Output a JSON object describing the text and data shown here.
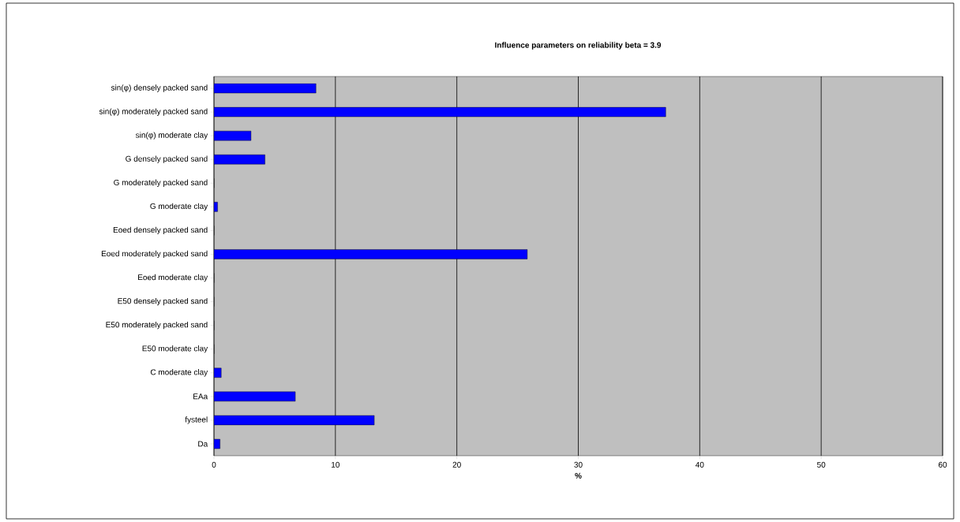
{
  "chart_data": {
    "type": "bar",
    "orientation": "horizontal",
    "title": "Influence parameters on reliability beta = 3.9",
    "xlabel": "%",
    "categories": [
      "sin(φ) densely packed sand",
      "sin(φ) moderately packed sand",
      "sin(φ) moderate clay",
      "G densely packed sand",
      "G moderately packed sand",
      "G moderate clay",
      "Eoed densely packed sand",
      "Eoed moderately packed sand",
      "Eoed moderate clay",
      "E50 densely packed sand",
      "E50 moderately packed sand",
      "E50 moderate clay",
      "C moderate clay",
      "EAa",
      "fysteel",
      "Da"
    ],
    "values": [
      8.4,
      37.2,
      3.05,
      4.2,
      0,
      0.3,
      0,
      25.8,
      0,
      0,
      0,
      0,
      0.6,
      6.7,
      13.2,
      0.5
    ],
    "color": "#0000ff",
    "xlim": [
      0,
      60
    ],
    "xticks": [
      0,
      10,
      20,
      30,
      40,
      50,
      60
    ],
    "grid": "x"
  }
}
